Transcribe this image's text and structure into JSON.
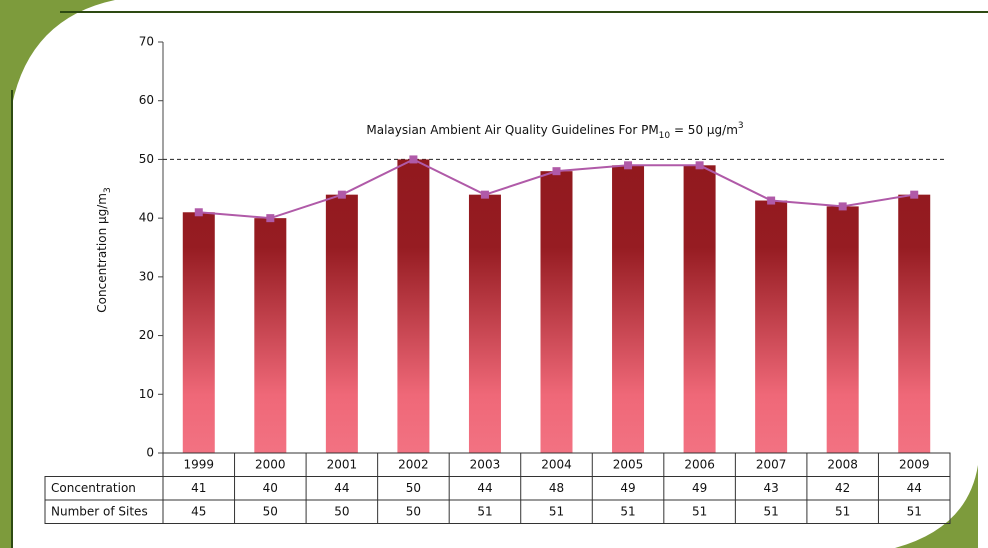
{
  "chart_data": {
    "type": "bar",
    "categories": [
      "1999",
      "2000",
      "2001",
      "2002",
      "2003",
      "2004",
      "2005",
      "2006",
      "2007",
      "2008",
      "2009"
    ],
    "series": [
      {
        "name": "Concentration",
        "color": "#b05aa8",
        "values": [
          41,
          40,
          44,
          50,
          44,
          48,
          49,
          49,
          43,
          42,
          44
        ]
      }
    ],
    "sites": {
      "name": "Number of Sites",
      "values": [
        45,
        50,
        50,
        50,
        51,
        51,
        51,
        51,
        51,
        51,
        51
      ]
    },
    "y_label": [
      "Concentration µg/m",
      "3"
    ],
    "annotation": [
      "Malaysian Ambient Air Quality Guidelines For PM",
      "10",
      " = 50 µg/m",
      "3"
    ],
    "guideline": 50,
    "ylim": [
      0,
      70
    ],
    "yticks": [
      0,
      10,
      20,
      30,
      40,
      50,
      60,
      70
    ]
  }
}
